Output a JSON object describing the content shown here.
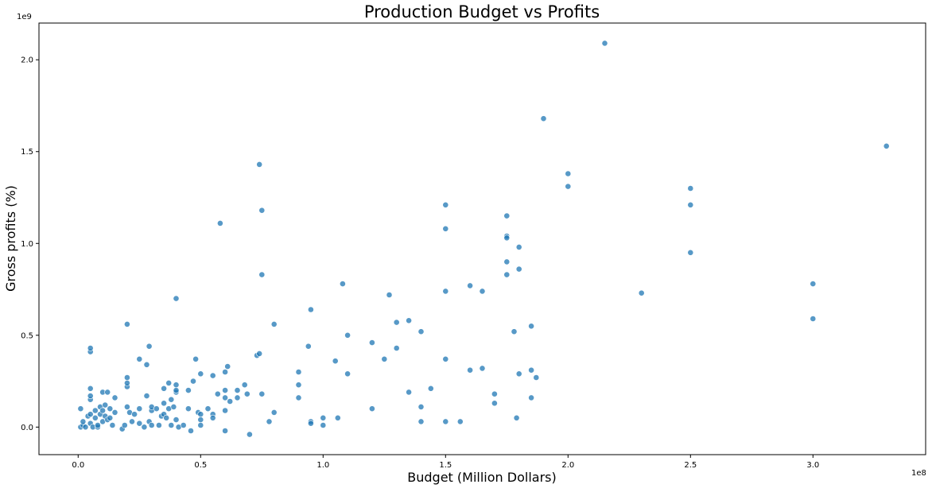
{
  "chart_data": {
    "type": "scatter",
    "title": "Production Budget vs Profits",
    "xlabel": "Budget (Million Dollars)",
    "ylabel": "Gross profits (%)",
    "x_offset_label": "1e8",
    "y_offset_label": "1e9",
    "xlim": [
      -0.16,
      3.46
    ],
    "ylim": [
      -0.15,
      2.2
    ],
    "x_ticks": [
      0.0,
      0.5,
      1.0,
      1.5,
      2.0,
      2.5,
      3.0
    ],
    "x_tick_labels": [
      "0.0",
      "0.5",
      "1.0",
      "1.5",
      "2.0",
      "2.5",
      "3.0"
    ],
    "y_ticks": [
      0.0,
      0.5,
      1.0,
      1.5,
      2.0
    ],
    "y_tick_labels": [
      "0.0",
      "0.5",
      "1.0",
      "1.5",
      "2.0"
    ],
    "grid": false,
    "color": "#1f77b4",
    "points": [
      [
        0.01,
        0.0
      ],
      [
        0.01,
        0.1
      ],
      [
        0.02,
        0.01
      ],
      [
        0.02,
        0.03
      ],
      [
        0.03,
        0.0
      ],
      [
        0.04,
        0.06
      ],
      [
        0.05,
        0.02
      ],
      [
        0.05,
        0.07
      ],
      [
        0.05,
        0.15
      ],
      [
        0.05,
        0.17
      ],
      [
        0.05,
        0.21
      ],
      [
        0.05,
        0.41
      ],
      [
        0.05,
        0.43
      ],
      [
        0.06,
        0.0
      ],
      [
        0.07,
        0.09
      ],
      [
        0.07,
        0.05
      ],
      [
        0.08,
        0.0
      ],
      [
        0.08,
        0.01
      ],
      [
        0.09,
        0.07
      ],
      [
        0.09,
        0.11
      ],
      [
        0.1,
        0.03
      ],
      [
        0.1,
        0.09
      ],
      [
        0.1,
        0.19
      ],
      [
        0.11,
        0.06
      ],
      [
        0.11,
        0.12
      ],
      [
        0.12,
        0.04
      ],
      [
        0.12,
        0.19
      ],
      [
        0.13,
        0.1
      ],
      [
        0.13,
        0.05
      ],
      [
        0.14,
        0.01
      ],
      [
        0.15,
        0.16
      ],
      [
        0.15,
        0.08
      ],
      [
        0.18,
        -0.01
      ],
      [
        0.19,
        0.01
      ],
      [
        0.2,
        0.22
      ],
      [
        0.2,
        0.27
      ],
      [
        0.2,
        0.24
      ],
      [
        0.2,
        0.56
      ],
      [
        0.2,
        0.11
      ],
      [
        0.21,
        0.08
      ],
      [
        0.22,
        0.03
      ],
      [
        0.23,
        0.07
      ],
      [
        0.25,
        0.1
      ],
      [
        0.25,
        0.37
      ],
      [
        0.25,
        0.02
      ],
      [
        0.27,
        0.0
      ],
      [
        0.28,
        0.17
      ],
      [
        0.28,
        0.34
      ],
      [
        0.29,
        0.44
      ],
      [
        0.29,
        0.03
      ],
      [
        0.3,
        0.09
      ],
      [
        0.3,
        0.11
      ],
      [
        0.3,
        0.01
      ],
      [
        0.32,
        0.1
      ],
      [
        0.33,
        0.01
      ],
      [
        0.34,
        0.06
      ],
      [
        0.35,
        0.07
      ],
      [
        0.35,
        0.21
      ],
      [
        0.35,
        0.13
      ],
      [
        0.36,
        0.05
      ],
      [
        0.37,
        0.24
      ],
      [
        0.37,
        0.1
      ],
      [
        0.38,
        0.15
      ],
      [
        0.38,
        0.01
      ],
      [
        0.39,
        0.11
      ],
      [
        0.4,
        0.19
      ],
      [
        0.4,
        0.23
      ],
      [
        0.4,
        0.7
      ],
      [
        0.4,
        0.2
      ],
      [
        0.4,
        0.04
      ],
      [
        0.41,
        0.0
      ],
      [
        0.43,
        0.01
      ],
      [
        0.45,
        0.1
      ],
      [
        0.45,
        0.2
      ],
      [
        0.46,
        -0.02
      ],
      [
        0.47,
        0.25
      ],
      [
        0.48,
        0.37
      ],
      [
        0.49,
        0.08
      ],
      [
        0.5,
        0.29
      ],
      [
        0.5,
        0.01
      ],
      [
        0.5,
        0.04
      ],
      [
        0.5,
        0.07
      ],
      [
        0.53,
        0.1
      ],
      [
        0.55,
        0.28
      ],
      [
        0.55,
        0.07
      ],
      [
        0.55,
        0.05
      ],
      [
        0.57,
        0.18
      ],
      [
        0.58,
        1.11
      ],
      [
        0.6,
        0.3
      ],
      [
        0.6,
        0.2
      ],
      [
        0.6,
        0.16
      ],
      [
        0.6,
        0.09
      ],
      [
        0.6,
        -0.02
      ],
      [
        0.61,
        0.33
      ],
      [
        0.62,
        0.14
      ],
      [
        0.65,
        0.2
      ],
      [
        0.65,
        0.16
      ],
      [
        0.68,
        0.23
      ],
      [
        0.69,
        0.18
      ],
      [
        0.7,
        -0.04
      ],
      [
        0.73,
        0.39
      ],
      [
        0.74,
        1.43
      ],
      [
        0.74,
        0.4
      ],
      [
        0.75,
        1.18
      ],
      [
        0.75,
        0.83
      ],
      [
        0.75,
        0.18
      ],
      [
        0.78,
        0.03
      ],
      [
        0.8,
        0.56
      ],
      [
        0.8,
        0.08
      ],
      [
        0.9,
        0.3
      ],
      [
        0.9,
        0.23
      ],
      [
        0.9,
        0.16
      ],
      [
        0.94,
        0.44
      ],
      [
        0.95,
        0.64
      ],
      [
        0.95,
        0.03
      ],
      [
        0.95,
        0.02
      ],
      [
        1.0,
        0.05
      ],
      [
        1.0,
        0.01
      ],
      [
        1.05,
        0.36
      ],
      [
        1.06,
        0.05
      ],
      [
        1.08,
        0.78
      ],
      [
        1.1,
        0.5
      ],
      [
        1.1,
        0.29
      ],
      [
        1.2,
        0.46
      ],
      [
        1.2,
        0.1
      ],
      [
        1.25,
        0.37
      ],
      [
        1.27,
        0.72
      ],
      [
        1.3,
        0.57
      ],
      [
        1.3,
        0.43
      ],
      [
        1.35,
        0.58
      ],
      [
        1.35,
        0.19
      ],
      [
        1.4,
        0.52
      ],
      [
        1.4,
        0.11
      ],
      [
        1.4,
        0.03
      ],
      [
        1.44,
        0.21
      ],
      [
        1.5,
        1.21
      ],
      [
        1.5,
        1.08
      ],
      [
        1.5,
        0.74
      ],
      [
        1.5,
        0.37
      ],
      [
        1.5,
        0.03
      ],
      [
        1.56,
        0.03
      ],
      [
        1.6,
        0.77
      ],
      [
        1.6,
        0.31
      ],
      [
        1.65,
        0.74
      ],
      [
        1.65,
        0.32
      ],
      [
        1.7,
        0.18
      ],
      [
        1.7,
        0.13
      ],
      [
        1.75,
        1.15
      ],
      [
        1.75,
        1.04
      ],
      [
        1.75,
        1.03
      ],
      [
        1.75,
        0.9
      ],
      [
        1.75,
        0.83
      ],
      [
        1.78,
        0.52
      ],
      [
        1.79,
        0.05
      ],
      [
        1.8,
        0.98
      ],
      [
        1.8,
        0.86
      ],
      [
        1.8,
        0.29
      ],
      [
        1.85,
        0.55
      ],
      [
        1.85,
        0.31
      ],
      [
        1.85,
        0.16
      ],
      [
        1.87,
        0.27
      ],
      [
        1.9,
        1.68
      ],
      [
        2.0,
        1.38
      ],
      [
        2.0,
        1.31
      ],
      [
        2.15,
        2.09
      ],
      [
        2.3,
        0.73
      ],
      [
        2.5,
        1.3
      ],
      [
        2.5,
        1.21
      ],
      [
        2.5,
        0.95
      ],
      [
        3.0,
        0.78
      ],
      [
        3.0,
        0.59
      ],
      [
        3.3,
        1.53
      ]
    ]
  }
}
